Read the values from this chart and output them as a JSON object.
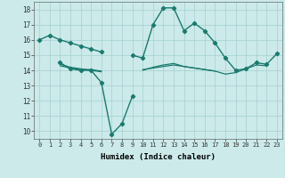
{
  "xlabel": "Humidex (Indice chaleur)",
  "x": [
    0,
    1,
    2,
    3,
    4,
    5,
    6,
    7,
    8,
    9,
    10,
    11,
    12,
    13,
    14,
    15,
    16,
    17,
    18,
    19,
    20,
    21,
    22,
    23
  ],
  "line1": [
    16.0,
    16.3,
    16.0,
    15.8,
    15.6,
    15.4,
    15.2,
    null,
    null,
    15.0,
    14.8,
    17.0,
    18.1,
    18.1,
    16.6,
    17.1,
    16.6,
    15.8,
    14.8,
    14.0,
    14.1,
    14.5,
    14.4,
    15.1
  ],
  "line2": [
    null,
    null,
    14.5,
    14.1,
    14.0,
    14.0,
    13.2,
    9.8,
    10.5,
    12.3,
    null,
    null,
    null,
    null,
    null,
    null,
    null,
    null,
    null,
    null,
    null,
    null,
    null,
    null
  ],
  "line3": [
    null,
    null,
    14.4,
    14.2,
    14.1,
    14.0,
    13.9,
    null,
    null,
    null,
    14.0,
    14.2,
    14.35,
    14.45,
    14.25,
    14.15,
    14.05,
    13.95,
    13.75,
    13.85,
    14.1,
    14.35,
    14.3,
    null
  ],
  "line4": [
    null,
    null,
    14.3,
    14.15,
    14.05,
    14.05,
    13.95,
    null,
    null,
    null,
    14.05,
    14.15,
    14.25,
    14.35,
    14.25,
    14.15,
    14.05,
    13.95,
    null,
    null,
    null,
    null,
    null,
    null
  ],
  "bg_color": "#cceaea",
  "grid_color": "#aad4d4",
  "line_color": "#1a7a6e",
  "ylim": [
    9.5,
    18.5
  ],
  "yticks": [
    10,
    11,
    12,
    13,
    14,
    15,
    16,
    17,
    18
  ],
  "xticks": [
    0,
    1,
    2,
    3,
    4,
    5,
    6,
    7,
    8,
    9,
    10,
    11,
    12,
    13,
    14,
    15,
    16,
    17,
    18,
    19,
    20,
    21,
    22,
    23
  ]
}
